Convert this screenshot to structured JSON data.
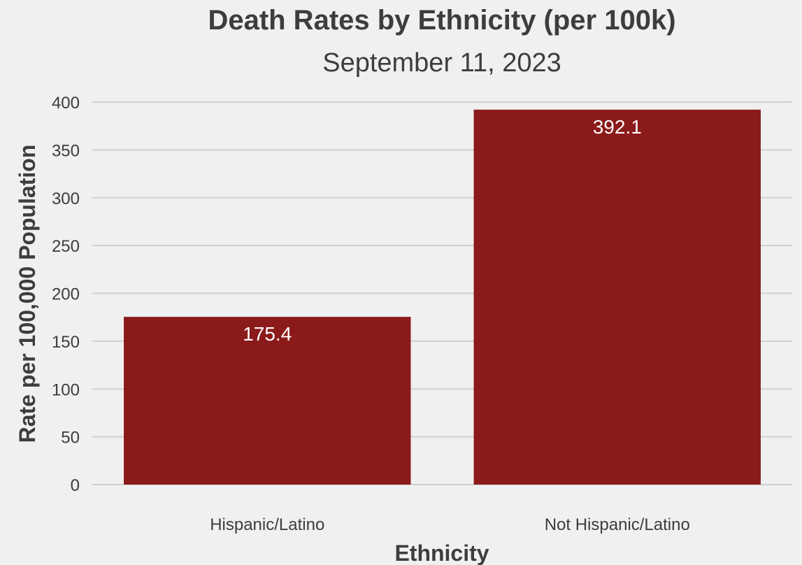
{
  "chart_data": {
    "type": "bar",
    "title": "Death Rates by Ethnicity (per 100k)",
    "subtitle": "September 11, 2023",
    "xlabel": "Ethnicity",
    "ylabel": "Rate per 100,000 Population",
    "categories": [
      "Hispanic/Latino",
      "Not Hispanic/Latino"
    ],
    "values": [
      175.4,
      392.1
    ],
    "data_labels": [
      "175.4",
      "392.1"
    ],
    "ylim": [
      0,
      400
    ],
    "yticks": [
      0,
      50,
      100,
      150,
      200,
      250,
      300,
      350,
      400
    ],
    "grid": "horizontal",
    "legend": "none",
    "colors": {
      "bar": "#8b1a1a",
      "background": "#f0f0f0",
      "grid": "#d0d0d0",
      "text": "#3d3d3d",
      "data_label": "#ffffff"
    }
  }
}
